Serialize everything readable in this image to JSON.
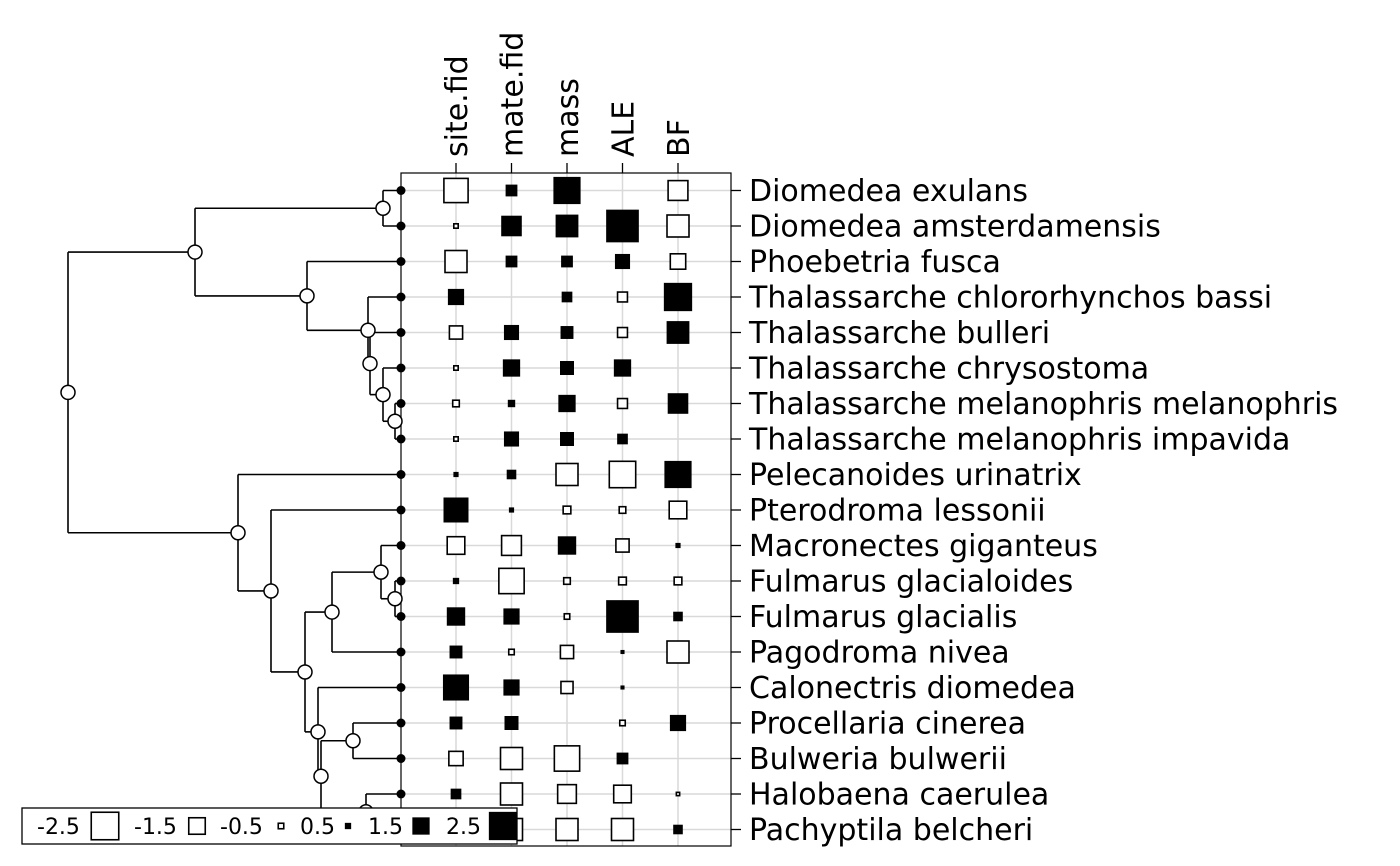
{
  "chart_data": {
    "type": "phylogenetic-table",
    "variables": [
      "site.fid",
      "mate.fid",
      "mass",
      "ALE",
      "BF"
    ],
    "species": [
      {
        "name": "Diomedea exulans",
        "values": [
          -2.2,
          1.0,
          2.4,
          0.05,
          -1.8
        ]
      },
      {
        "name": "Diomedea amsterdamensis",
        "values": [
          -0.4,
          1.8,
          2.0,
          2.9,
          -2.0
        ]
      },
      {
        "name": "Phoebetria fusca",
        "values": [
          -2.0,
          1.0,
          1.0,
          1.3,
          -1.4
        ]
      },
      {
        "name": "Thalassarche chlororhynchos bassi",
        "values": [
          1.4,
          0.05,
          0.9,
          -0.9,
          2.5
        ]
      },
      {
        "name": "Thalassarche bulleri",
        "values": [
          -1.2,
          1.3,
          1.1,
          -0.9,
          2.0
        ]
      },
      {
        "name": "Thalassarche chrysostoma",
        "values": [
          -0.4,
          1.5,
          1.2,
          1.5,
          0.0
        ]
      },
      {
        "name": "Thalassarche melanophris melanophris",
        "values": [
          -0.6,
          0.6,
          1.5,
          -0.9,
          1.8
        ]
      },
      {
        "name": "Thalassarche melanophris impavida",
        "values": [
          -0.4,
          1.3,
          1.2,
          0.9,
          0.0
        ]
      },
      {
        "name": "Pelecanoides urinatrix",
        "values": [
          0.4,
          0.8,
          -2.0,
          -2.4,
          2.4
        ]
      },
      {
        "name": "Pterodroma lessonii",
        "values": [
          2.2,
          0.4,
          -0.7,
          -0.6,
          -1.6
        ]
      },
      {
        "name": "Macronectes giganteus",
        "values": [
          -1.6,
          -1.8,
          1.6,
          -1.2,
          0.4
        ]
      },
      {
        "name": "Fulmarus glacialoides",
        "values": [
          0.5,
          -2.3,
          -0.6,
          -0.7,
          -0.7
        ]
      },
      {
        "name": "Fulmarus glacialis",
        "values": [
          1.6,
          1.4,
          -0.5,
          2.9,
          0.8
        ]
      },
      {
        "name": "Pagodroma nivea",
        "values": [
          1.1,
          -0.5,
          -1.2,
          0.3,
          -2.0
        ]
      },
      {
        "name": "Calonectris diomedea",
        "values": [
          2.3,
          1.4,
          -1.1,
          0.3,
          0.0
        ]
      },
      {
        "name": "Procellaria cinerea",
        "values": [
          1.1,
          1.2,
          0.05,
          -0.5,
          1.4
        ]
      },
      {
        "name": "Bulweria bulwerii",
        "values": [
          -1.3,
          -2.0,
          -2.3,
          1.0,
          0.0
        ]
      },
      {
        "name": "Halobaena caerulea",
        "values": [
          0.9,
          -2.0,
          -1.7,
          -1.6,
          -0.3
        ]
      },
      {
        "name": "Pachyptila belcheri",
        "values": [
          0.0,
          -2.0,
          -2.0,
          -2.0,
          0.8
        ]
      }
    ],
    "legend": {
      "position": "bottom-left",
      "keys": [
        -2.5,
        -1.5,
        -0.5,
        0.5,
        1.5,
        2.5
      ],
      "labels": [
        "-2.5",
        "-1.5",
        "-0.5",
        "0.5",
        "1.5",
        "2.5"
      ],
      "note": "open squares = negative values, filled squares = positive values; square size grows with absolute value"
    },
    "grid": true,
    "colors": {
      "positive": "#000000",
      "negative": "#ffffff",
      "outline": "#000000",
      "grid": "#d9d9d9"
    }
  }
}
